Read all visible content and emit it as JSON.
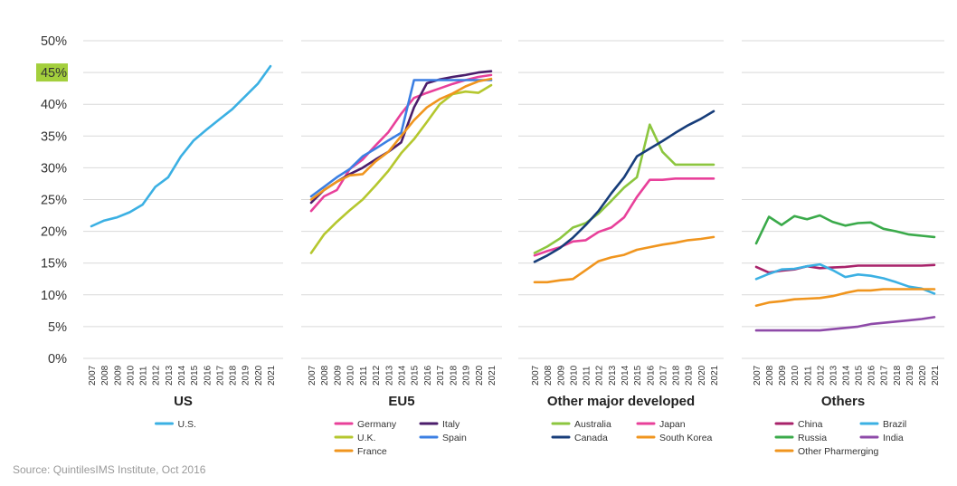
{
  "source": "Source: QuintilesIMS Institute, Oct 2016",
  "colors": {
    "grid": "#d9d9d9",
    "axis_text": "#333333",
    "highlight": "#a3cf3c"
  },
  "chart_data": {
    "type": "line",
    "ylim": [
      0,
      50
    ],
    "yticks": [
      {
        "value": 0,
        "label": "0%"
      },
      {
        "value": 5,
        "label": "5%"
      },
      {
        "value": 10,
        "label": "10%"
      },
      {
        "value": 15,
        "label": "15%"
      },
      {
        "value": 20,
        "label": "20%"
      },
      {
        "value": 25,
        "label": "25%"
      },
      {
        "value": 30,
        "label": "30%"
      },
      {
        "value": 35,
        "label": "35%"
      },
      {
        "value": 40,
        "label": "40%"
      },
      {
        "value": 45,
        "label": "45%",
        "highlight": true
      },
      {
        "value": 50,
        "label": "50%"
      }
    ],
    "x": [
      "2007",
      "2008",
      "2009",
      "2010",
      "2011",
      "2012",
      "2013",
      "2014",
      "2015",
      "2016",
      "2017",
      "2018",
      "2019",
      "2020",
      "2021"
    ],
    "panels": [
      {
        "title": "US",
        "series": [
          {
            "name": "U.S.",
            "color": "#3bb0e3",
            "values": [
              20.8,
              21.7,
              22.2,
              23.0,
              24.2,
              27.0,
              28.5,
              31.8,
              34.3,
              36.0,
              37.6,
              39.2,
              41.2,
              43.2,
              46.0
            ]
          }
        ]
      },
      {
        "title": "EU5",
        "series": [
          {
            "name": "Germany",
            "color": "#e8409a",
            "values": [
              23.2,
              25.5,
              26.5,
              29.8,
              31.3,
              33.5,
              35.6,
              38.5,
              41.0,
              41.8,
              42.5,
              43.2,
              43.8,
              44.3,
              44.6
            ]
          },
          {
            "name": "Italy",
            "color": "#4b1d6b",
            "values": [
              24.5,
              26.5,
              27.8,
              29.0,
              30.0,
              31.3,
              32.5,
              34.0,
              39.5,
              43.3,
              43.9,
              44.3,
              44.6,
              45.0,
              45.2
            ]
          },
          {
            "name": "U.K.",
            "color": "#b5c72e",
            "values": [
              16.6,
              19.5,
              21.5,
              23.3,
              25.0,
              27.2,
              29.5,
              32.3,
              34.5,
              37.2,
              40.0,
              41.6,
              42.0,
              41.8,
              43.0
            ]
          },
          {
            "name": "Spain",
            "color": "#3b7fe3",
            "values": [
              25.5,
              27.0,
              28.5,
              29.8,
              31.8,
              33.0,
              34.3,
              35.5,
              43.8,
              43.8,
              43.8,
              43.8,
              43.8,
              43.8,
              43.8
            ]
          },
          {
            "name": "France",
            "color": "#f0951e",
            "values": [
              25.0,
              26.5,
              27.8,
              28.8,
              29.0,
              31.0,
              32.5,
              35.0,
              37.5,
              39.5,
              40.8,
              41.7,
              42.8,
              43.6,
              44.0
            ]
          }
        ]
      },
      {
        "title": "Other major developed",
        "series": [
          {
            "name": "Australia",
            "color": "#8cc63f",
            "values": [
              16.6,
              17.6,
              18.9,
              20.6,
              21.3,
              22.8,
              24.8,
              26.9,
              28.5,
              36.8,
              32.5,
              30.5,
              30.5,
              30.5,
              30.5
            ]
          },
          {
            "name": "Japan",
            "color": "#e8409a",
            "values": [
              16.2,
              16.9,
              17.5,
              18.4,
              18.6,
              19.9,
              20.6,
              22.2,
              25.4,
              28.1,
              28.1,
              28.3,
              28.3,
              28.3,
              28.3
            ]
          },
          {
            "name": "Canada",
            "color": "#173d7a",
            "values": [
              15.2,
              16.2,
              17.4,
              19.0,
              21.0,
              23.2,
              26.0,
              28.5,
              31.8,
              33.0,
              34.2,
              35.5,
              36.7,
              37.7,
              38.9
            ]
          },
          {
            "name": "South Korea",
            "color": "#f0951e",
            "values": [
              12.0,
              12.0,
              12.3,
              12.5,
              13.9,
              15.3,
              15.9,
              16.3,
              17.1,
              17.5,
              17.9,
              18.2,
              18.6,
              18.8,
              19.1
            ]
          }
        ]
      },
      {
        "title": "Others",
        "series": [
          {
            "name": "China",
            "color": "#a8226a",
            "values": [
              14.4,
              13.5,
              13.8,
              14.0,
              14.5,
              14.2,
              14.3,
              14.4,
              14.6,
              14.6,
              14.6,
              14.6,
              14.6,
              14.6,
              14.7
            ]
          },
          {
            "name": "Brazil",
            "color": "#3bb0e3",
            "values": [
              12.5,
              13.3,
              14.0,
              14.1,
              14.5,
              14.8,
              13.9,
              12.8,
              13.2,
              13.0,
              12.6,
              12.0,
              11.3,
              11.0,
              10.2
            ]
          },
          {
            "name": "Russia",
            "color": "#3aaa4a",
            "values": [
              18.1,
              22.3,
              21.0,
              22.4,
              21.9,
              22.5,
              21.5,
              20.9,
              21.3,
              21.4,
              20.4,
              20.0,
              19.5,
              19.3,
              19.1
            ]
          },
          {
            "name": "India",
            "color": "#8e4aa8",
            "values": [
              4.4,
              4.4,
              4.4,
              4.4,
              4.4,
              4.4,
              4.6,
              4.8,
              5.0,
              5.4,
              5.6,
              5.8,
              6.0,
              6.2,
              6.5
            ]
          },
          {
            "name": "Other Pharmerging",
            "color": "#f0951e",
            "values": [
              8.3,
              8.8,
              9.0,
              9.3,
              9.4,
              9.5,
              9.8,
              10.3,
              10.7,
              10.7,
              10.9,
              10.9,
              10.9,
              10.9,
              10.9
            ]
          }
        ]
      }
    ]
  }
}
